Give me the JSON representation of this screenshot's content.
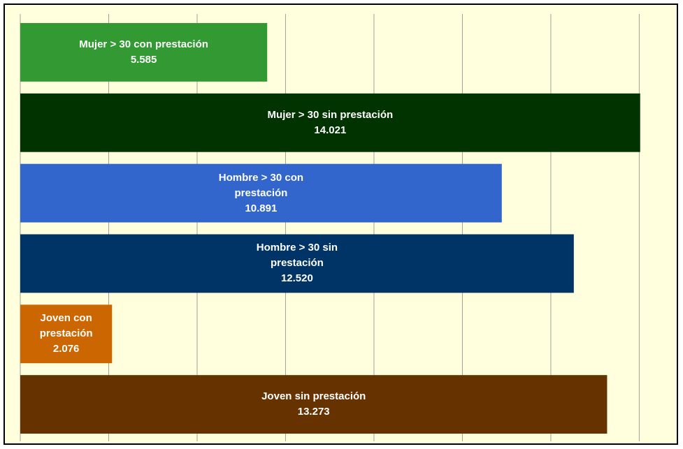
{
  "chart_data": {
    "type": "barh",
    "categories": [
      "Mujer > 30 con prestación",
      "Mujer > 30 sin prestación",
      "Hombre > 30 con prestación",
      "Hombre > 30 sin prestación",
      "Joven con prestación",
      "Joven sin prestación"
    ],
    "values": [
      5585,
      14021,
      10891,
      12520,
      2076,
      13273
    ],
    "value_labels": [
      "5.585",
      "14.021",
      "10.891",
      "12.520",
      "2.076",
      "13.273"
    ],
    "colors": [
      "#339933",
      "#003300",
      "#3366cc",
      "#003366",
      "#cc6600",
      "#663300"
    ],
    "xlim": [
      0,
      14800
    ],
    "xticks": [
      0,
      2000,
      4000,
      6000,
      8000,
      10000,
      12000,
      14000
    ],
    "grid": true
  }
}
